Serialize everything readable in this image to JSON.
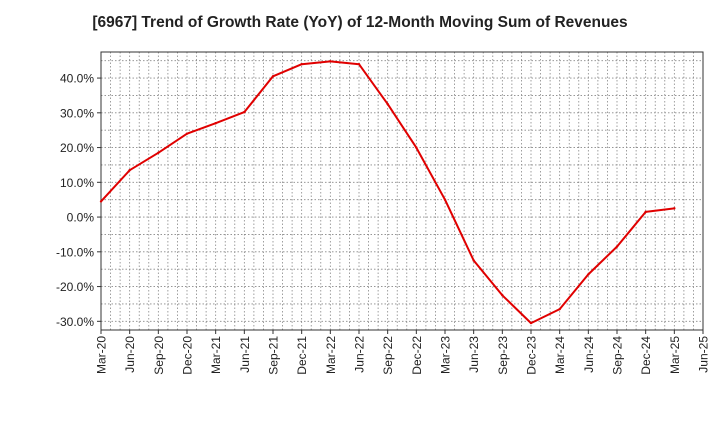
{
  "chart_data": {
    "type": "line",
    "title": "[6967]  Trend of Growth Rate (YoY) of 12-Month Moving Sum of Revenues",
    "xlabel": "",
    "ylabel": "",
    "x_ticks": [
      "Mar-20",
      "Jun-20",
      "Sep-20",
      "Dec-20",
      "Mar-21",
      "Jun-21",
      "Sep-21",
      "Dec-21",
      "Mar-22",
      "Jun-22",
      "Sep-22",
      "Dec-22",
      "Mar-23",
      "Jun-23",
      "Sep-23",
      "Dec-23",
      "Mar-24",
      "Jun-24",
      "Sep-24",
      "Dec-24",
      "Mar-25",
      "Jun-25"
    ],
    "y_ticks": [
      -30,
      -20,
      -10,
      0,
      10,
      20,
      30,
      40
    ],
    "y_tick_labels": [
      "-30.0%",
      "-20.0%",
      "-10.0%",
      "0.0%",
      "10.0%",
      "20.0%",
      "30.0%",
      "40.0%"
    ],
    "ylim": [
      -32.5,
      47.5
    ],
    "grid": true,
    "series": [
      {
        "color": "#e00000",
        "x": [
          "Mar-20",
          "Jun-20",
          "Sep-20",
          "Dec-20",
          "Mar-21",
          "Jun-21",
          "Sep-21",
          "Dec-21",
          "Mar-22",
          "Jun-22",
          "Sep-22",
          "Dec-22",
          "Mar-23",
          "Jun-23",
          "Sep-23",
          "Dec-23",
          "Mar-24",
          "Jun-24",
          "Sep-24",
          "Dec-24",
          "Mar-25"
        ],
        "values": [
          4.5,
          13.5,
          18.5,
          24.0,
          27.0,
          30.2,
          40.5,
          44.0,
          44.8,
          44.0,
          32.5,
          20.0,
          5.0,
          -12.5,
          -22.5,
          -30.5,
          -26.5,
          -16.5,
          -8.5,
          1.5,
          2.5
        ]
      }
    ]
  }
}
